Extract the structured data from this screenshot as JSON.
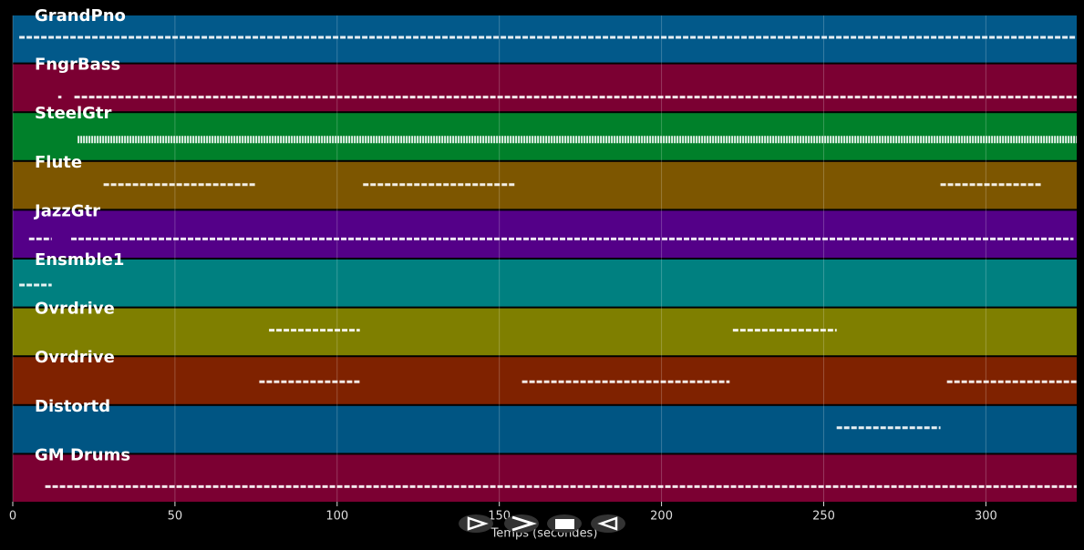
{
  "chart_data": {
    "type": "pianoroll",
    "xlabel": "Temps (secondes)",
    "xlim": [
      0,
      328
    ],
    "xticks": [
      0,
      50,
      100,
      150,
      200,
      250,
      300
    ],
    "grid": true,
    "tracks": [
      {
        "name": "GrandPno",
        "color": "#02598a",
        "segments": [
          [
            2,
            328
          ]
        ]
      },
      {
        "name": "FngrBass",
        "color": "#7b0032",
        "segments": [
          [
            14,
            15
          ],
          [
            19,
            328
          ]
        ]
      },
      {
        "name": "SteelGtr",
        "color": "#00802a",
        "segments": [
          [
            20,
            328
          ]
        ]
      },
      {
        "name": "Flute",
        "color": "#7d5600",
        "segments": [
          [
            28,
            75
          ],
          [
            108,
            155
          ],
          [
            286,
            317
          ]
        ]
      },
      {
        "name": "JazzGtr",
        "color": "#540088",
        "segments": [
          [
            5,
            12
          ],
          [
            18,
            327
          ]
        ]
      },
      {
        "name": "Ensmble1",
        "color": "#008080",
        "segments": [
          [
            2,
            12
          ]
        ]
      },
      {
        "name": "Ovrdrive",
        "color": "#7f7f00",
        "segments": [
          [
            79,
            107
          ],
          [
            222,
            254
          ]
        ]
      },
      {
        "name": "Ovrdrive",
        "color": "#7f2200",
        "segments": [
          [
            76,
            107
          ],
          [
            157,
            221
          ],
          [
            288,
            328
          ]
        ]
      },
      {
        "name": "Distortd",
        "color": "#005583",
        "segments": [
          [
            254,
            286
          ]
        ]
      },
      {
        "name": "GM Drums",
        "color": "#7b0032",
        "segments": [
          [
            10,
            328
          ]
        ]
      }
    ]
  }
}
